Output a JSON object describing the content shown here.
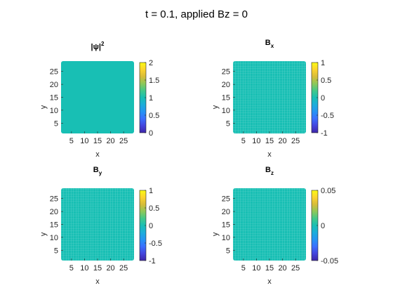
{
  "figure": {
    "title": "t = 0.1, applied Bz = 0"
  },
  "colors": {
    "field_fill": "#18bfb4",
    "colormap": [
      "#3e26a8",
      "#4445dd",
      "#3b6ffd",
      "#2594f3",
      "#1cadda",
      "#18bfb4",
      "#43c889",
      "#8ec859",
      "#d7bc38",
      "#fcd32e",
      "#f9fb14"
    ]
  },
  "chart_data": [
    {
      "type": "heatmap",
      "title_main": "|ψ|",
      "title_sup": "2",
      "title_sub": "",
      "xlabel": "x",
      "ylabel": "y",
      "xticks": [
        "5",
        "10",
        "15",
        "20",
        "25"
      ],
      "yticks": [
        "5",
        "10",
        "15",
        "20",
        "25"
      ],
      "xlim": [
        1,
        29
      ],
      "ylim": [
        1,
        29
      ],
      "colorbar_ticks": [
        "0",
        "0.5",
        "1",
        "1.5",
        "2"
      ],
      "clim": [
        0,
        2
      ],
      "field_value": 1,
      "grid_texture": false
    },
    {
      "type": "heatmap",
      "title_main": "B",
      "title_sup": "",
      "title_sub": "x",
      "xlabel": "x",
      "ylabel": "y",
      "xticks": [
        "5",
        "10",
        "15",
        "20",
        "25"
      ],
      "yticks": [
        "5",
        "10",
        "15",
        "20",
        "25"
      ],
      "xlim": [
        1,
        29
      ],
      "ylim": [
        1,
        29
      ],
      "colorbar_ticks": [
        "-1",
        "-0.5",
        "0",
        "0.5",
        "1"
      ],
      "clim": [
        -1,
        1
      ],
      "field_value": 0,
      "grid_texture": true
    },
    {
      "type": "heatmap",
      "title_main": "B",
      "title_sup": "",
      "title_sub": "y",
      "xlabel": "x",
      "ylabel": "y",
      "xticks": [
        "5",
        "10",
        "15",
        "20",
        "25"
      ],
      "yticks": [
        "5",
        "10",
        "15",
        "20",
        "25"
      ],
      "xlim": [
        1,
        29
      ],
      "ylim": [
        1,
        29
      ],
      "colorbar_ticks": [
        "-1",
        "-0.5",
        "0",
        "0.5",
        "1"
      ],
      "clim": [
        -1,
        1
      ],
      "field_value": 0,
      "grid_texture": true
    },
    {
      "type": "heatmap",
      "title_main": "B",
      "title_sup": "",
      "title_sub": "z",
      "xlabel": "x",
      "ylabel": "y",
      "xticks": [
        "5",
        "10",
        "15",
        "20",
        "25"
      ],
      "yticks": [
        "5",
        "10",
        "15",
        "20",
        "25"
      ],
      "xlim": [
        1,
        29
      ],
      "ylim": [
        1,
        29
      ],
      "colorbar_ticks": [
        "-0.05",
        "0",
        "0.05"
      ],
      "clim": [
        -0.05,
        0.05
      ],
      "field_value": 0,
      "grid_texture": true
    }
  ]
}
